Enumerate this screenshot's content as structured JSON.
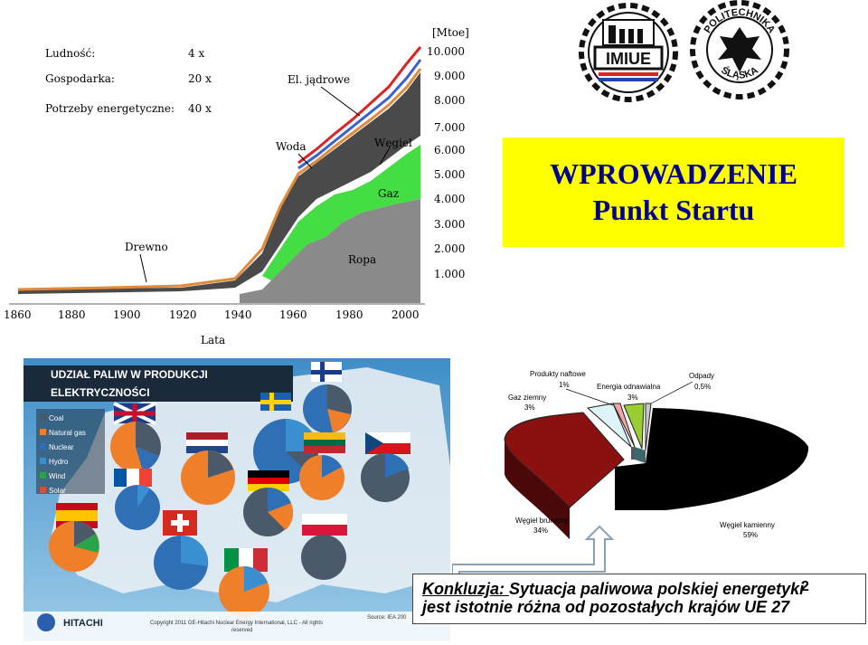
{
  "slide": {
    "title_line1": "WPROWADZENIE",
    "title_line2": "Punkt Startu",
    "page_number": "2"
  },
  "history_chart": {
    "unit_label": "[Mtoe]",
    "x_axis_label": "Lata",
    "x_ticks": [
      "1860",
      "1880",
      "1900",
      "1920",
      "1940",
      "1960",
      "1980",
      "2000"
    ],
    "y_ticks": [
      "1.000",
      "2.000",
      "3.000",
      "4.000",
      "5.000",
      "6.000",
      "7.000",
      "8.000",
      "9.000",
      "10.000"
    ],
    "growth_table": [
      {
        "label": "Ludność:",
        "value": "4 x"
      },
      {
        "label": "Gospodarka:",
        "value": "20 x"
      },
      {
        "label": "Potrzeby energetyczne:",
        "value": "40 x"
      }
    ],
    "annotations": {
      "drewno": "Drewno",
      "woda": "Woda",
      "wegiel": "Węgiel",
      "gaz": "Gaz",
      "ropa": "Ropa",
      "jadrowe": "El. jądrowe"
    }
  },
  "map": {
    "heading_line1": "UDZIAŁ PALIW W PRODUKCJI",
    "heading_line2": "ELEKTRYCZNOŚCI",
    "legend": [
      {
        "label": "Coal",
        "color": "#4a5a6a"
      },
      {
        "label": "Natural gas",
        "color": "#f07f2a"
      },
      {
        "label": "Nuclear",
        "color": "#2e6fb5"
      },
      {
        "label": "Hydro",
        "color": "#3a8fd0"
      },
      {
        "label": "Wind",
        "color": "#2aa44a"
      },
      {
        "label": "Solar",
        "color": "#d9503a"
      }
    ],
    "footer_left": "HITACHI",
    "footer_copyright_line1": "Copyright 2011 GE-Hitachi Nuclear Energy International, LLC - All rights",
    "footer_copyright_line2": "reserved",
    "footer_source": "Source: IEA 200"
  },
  "pie": {
    "labels": [
      {
        "name": "Produkty naftowe",
        "value": "1%"
      },
      {
        "name": "Energia odnawialna",
        "value": "3%"
      },
      {
        "name": "Odpady",
        "value": "0,5%"
      },
      {
        "name": "Gaz ziemny",
        "value": "3%"
      },
      {
        "name": "Węgiel brunatny",
        "value": "34%"
      },
      {
        "name": "Węgiel kamienny",
        "value": "59%"
      }
    ]
  },
  "conclusion": {
    "lead": "Konkluzja: ",
    "line1": "Sytuacja paliwowa polskiej energetyki",
    "line2": "jest istotnie różna od pozostałych  krajów UE 27"
  },
  "logos": {
    "imiue": "IMIUE",
    "polsl_top": "POLITECHNIKA",
    "polsl_bottom": "ŚLĄSKA"
  }
}
